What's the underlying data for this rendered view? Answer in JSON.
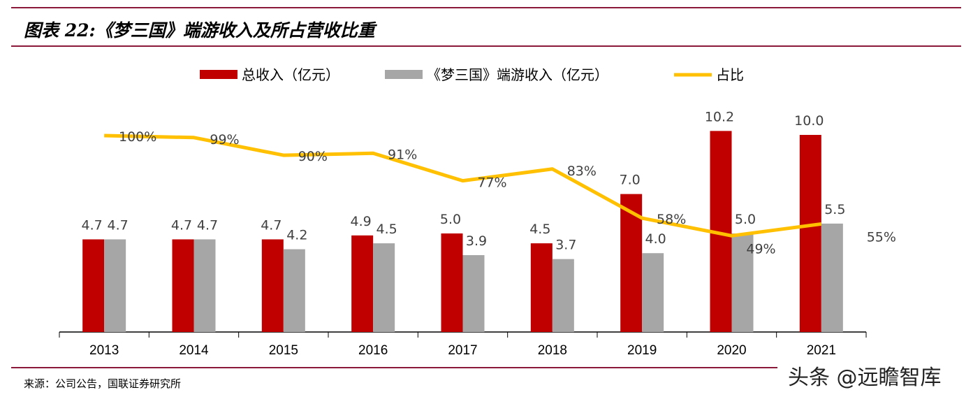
{
  "title": "图表 22:《梦三国》端游收入及所占营收比重",
  "source": "来源：公司公告，国联证券研究所",
  "watermark": "头条 @远瞻智库",
  "chart_data": {
    "type": "bar+line",
    "categories": [
      "2013",
      "2014",
      "2015",
      "2016",
      "2017",
      "2018",
      "2019",
      "2020",
      "2021"
    ],
    "series": [
      {
        "name": "总收入（亿元）",
        "type": "bar",
        "color": "#c00000",
        "values": [
          4.7,
          4.7,
          4.7,
          4.9,
          5.0,
          4.5,
          7.0,
          10.2,
          10.0
        ],
        "labels": [
          "4.7",
          "4.7",
          "4.7",
          "4.9",
          "5.0",
          "4.5",
          "7.0",
          "10.2",
          "10.0"
        ]
      },
      {
        "name": "《梦三国》端游收入（亿元）",
        "type": "bar",
        "color": "#a6a6a6",
        "values": [
          4.7,
          4.7,
          4.2,
          4.5,
          3.9,
          3.7,
          4.0,
          5.0,
          5.5
        ],
        "labels": [
          "4.7",
          "4.7",
          "4.2",
          "4.5",
          "3.9",
          "3.7",
          "4.0",
          "5.0",
          "5.5"
        ]
      },
      {
        "name": "占比",
        "type": "line",
        "axis": "secondary",
        "color": "#ffc000",
        "values": [
          100,
          99,
          90,
          91,
          77,
          83,
          58,
          49,
          55
        ],
        "labels": [
          "100%",
          "99%",
          "90%",
          "91%",
          "77%",
          "83%",
          "58%",
          "49%",
          "55%"
        ]
      }
    ],
    "legend": "top",
    "grid": false
  }
}
